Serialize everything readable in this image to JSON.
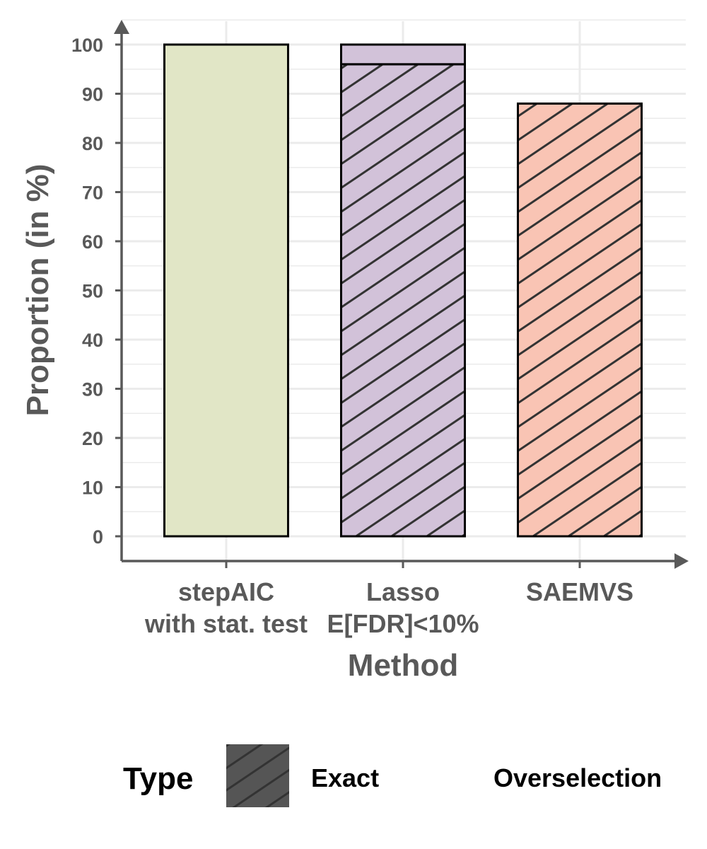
{
  "chart_data": {
    "type": "bar",
    "stacked": true,
    "xlabel": "Method",
    "ylabel": "Proportion (in %)",
    "ylim": [
      0,
      100
    ],
    "y_ticks": [
      0,
      10,
      20,
      30,
      40,
      50,
      60,
      70,
      80,
      90,
      100
    ],
    "grid": true,
    "legend_position": "bottom",
    "categories": [
      {
        "lines": [
          "stepAIC",
          "with stat. test"
        ],
        "color": "#e1e6c6"
      },
      {
        "lines": [
          "Lasso",
          "E[FDR]<10%"
        ],
        "color": "#d2c2d9"
      },
      {
        "lines": [
          "SAEMVS"
        ],
        "color": "#f9c4b4"
      }
    ],
    "series": [
      {
        "name": "Exact",
        "values": [
          0,
          96,
          88
        ],
        "pattern": "hatched"
      },
      {
        "name": "Overselection",
        "values": [
          100,
          4,
          0
        ],
        "pattern": "none"
      }
    ],
    "legend": {
      "title": "Type",
      "items": [
        {
          "label": "Exact",
          "pattern": "hatched",
          "color": "#555555"
        },
        {
          "label": "Overselection",
          "pattern": "none",
          "color": "#ffffff"
        }
      ]
    },
    "colors": {
      "axis": "#595959",
      "grid": "#ebebeb",
      "hatch": "#333333",
      "bar_outline": "#000000"
    }
  }
}
